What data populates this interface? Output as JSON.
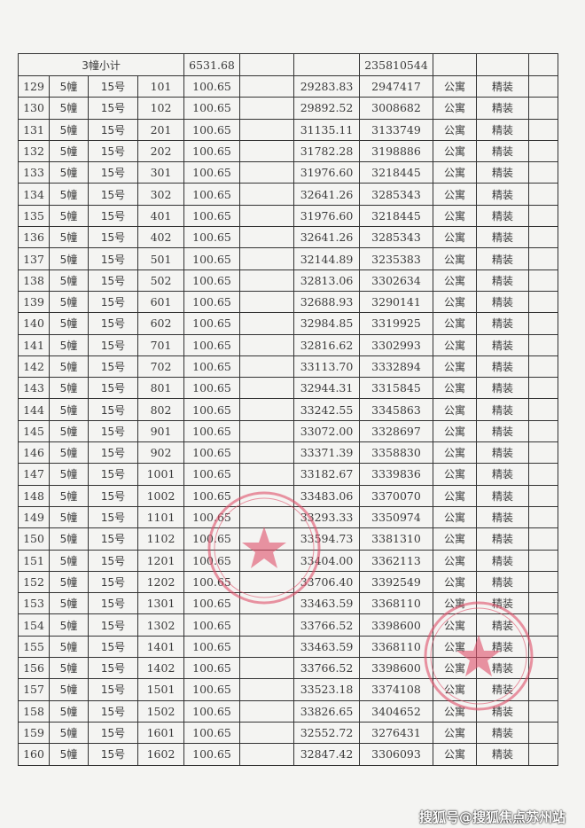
{
  "subtotal": {
    "label": "3幢小计",
    "area": "6531.68",
    "total": "235810544"
  },
  "rows": [
    [
      "129",
      "5幢",
      "15号",
      "101",
      "100.65",
      "",
      "29283.83",
      "2947417",
      "公寓",
      "精装"
    ],
    [
      "130",
      "5幢",
      "15号",
      "102",
      "100.65",
      "",
      "29892.52",
      "3008682",
      "公寓",
      "精装"
    ],
    [
      "131",
      "5幢",
      "15号",
      "201",
      "100.65",
      "",
      "31135.11",
      "3133749",
      "公寓",
      "精装"
    ],
    [
      "132",
      "5幢",
      "15号",
      "202",
      "100.65",
      "",
      "31782.28",
      "3198886",
      "公寓",
      "精装"
    ],
    [
      "133",
      "5幢",
      "15号",
      "301",
      "100.65",
      "",
      "31976.60",
      "3218445",
      "公寓",
      "精装"
    ],
    [
      "134",
      "5幢",
      "15号",
      "302",
      "100.65",
      "",
      "32641.26",
      "3285343",
      "公寓",
      "精装"
    ],
    [
      "135",
      "5幢",
      "15号",
      "401",
      "100.65",
      "",
      "31976.60",
      "3218445",
      "公寓",
      "精装"
    ],
    [
      "136",
      "5幢",
      "15号",
      "402",
      "100.65",
      "",
      "32641.26",
      "3285343",
      "公寓",
      "精装"
    ],
    [
      "137",
      "5幢",
      "15号",
      "501",
      "100.65",
      "",
      "32144.89",
      "3235383",
      "公寓",
      "精装"
    ],
    [
      "138",
      "5幢",
      "15号",
      "502",
      "100.65",
      "",
      "32813.06",
      "3302634",
      "公寓",
      "精装"
    ],
    [
      "139",
      "5幢",
      "15号",
      "601",
      "100.65",
      "",
      "32688.93",
      "3290141",
      "公寓",
      "精装"
    ],
    [
      "140",
      "5幢",
      "15号",
      "602",
      "100.65",
      "",
      "32984.85",
      "3319925",
      "公寓",
      "精装"
    ],
    [
      "141",
      "5幢",
      "15号",
      "701",
      "100.65",
      "",
      "32816.62",
      "3302993",
      "公寓",
      "精装"
    ],
    [
      "142",
      "5幢",
      "15号",
      "702",
      "100.65",
      "",
      "33113.70",
      "3332894",
      "公寓",
      "精装"
    ],
    [
      "143",
      "5幢",
      "15号",
      "801",
      "100.65",
      "",
      "32944.31",
      "3315845",
      "公寓",
      "精装"
    ],
    [
      "144",
      "5幢",
      "15号",
      "802",
      "100.65",
      "",
      "33242.55",
      "3345863",
      "公寓",
      "精装"
    ],
    [
      "145",
      "5幢",
      "15号",
      "901",
      "100.65",
      "",
      "33072.00",
      "3328697",
      "公寓",
      "精装"
    ],
    [
      "146",
      "5幢",
      "15号",
      "902",
      "100.65",
      "",
      "33371.39",
      "3358830",
      "公寓",
      "精装"
    ],
    [
      "147",
      "5幢",
      "15号",
      "1001",
      "100.65",
      "",
      "33182.67",
      "3339836",
      "公寓",
      "精装"
    ],
    [
      "148",
      "5幢",
      "15号",
      "1002",
      "100.65",
      "",
      "33483.06",
      "3370070",
      "公寓",
      "精装"
    ],
    [
      "149",
      "5幢",
      "15号",
      "1101",
      "100.65",
      "",
      "33293.33",
      "3350974",
      "公寓",
      "精装"
    ],
    [
      "150",
      "5幢",
      "15号",
      "1102",
      "100.65",
      "",
      "33594.73",
      "3381310",
      "公寓",
      "精装"
    ],
    [
      "151",
      "5幢",
      "15号",
      "1201",
      "100.65",
      "",
      "33404.00",
      "3362113",
      "公寓",
      "精装"
    ],
    [
      "152",
      "5幢",
      "15号",
      "1202",
      "100.65",
      "",
      "33706.40",
      "3392549",
      "公寓",
      "精装"
    ],
    [
      "153",
      "5幢",
      "15号",
      "1301",
      "100.65",
      "",
      "33463.59",
      "3368110",
      "公寓",
      "精装"
    ],
    [
      "154",
      "5幢",
      "15号",
      "1302",
      "100.65",
      "",
      "33766.52",
      "3398600",
      "公寓",
      "精装"
    ],
    [
      "155",
      "5幢",
      "15号",
      "1401",
      "100.65",
      "",
      "33463.59",
      "3368110",
      "公寓",
      "精装"
    ],
    [
      "156",
      "5幢",
      "15号",
      "1402",
      "100.65",
      "",
      "33766.52",
      "3398600",
      "公寓",
      "精装"
    ],
    [
      "157",
      "5幢",
      "15号",
      "1501",
      "100.65",
      "",
      "33523.18",
      "3374108",
      "公寓",
      "精装"
    ],
    [
      "158",
      "5幢",
      "15号",
      "1502",
      "100.65",
      "",
      "33826.65",
      "3404652",
      "公寓",
      "精装"
    ],
    [
      "159",
      "5幢",
      "15号",
      "1601",
      "100.65",
      "",
      "32552.72",
      "3276431",
      "公寓",
      "精装"
    ],
    [
      "160",
      "5幢",
      "15号",
      "1602",
      "100.65",
      "",
      "32847.42",
      "3306093",
      "公寓",
      "精装"
    ]
  ],
  "stamp_color": "#e0506a",
  "watermark": "搜狐号@搜狐焦点苏州站"
}
